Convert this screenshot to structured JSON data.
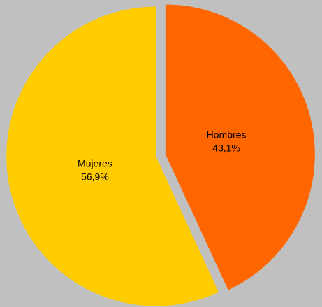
{
  "chart_data": {
    "type": "pie",
    "slices": [
      {
        "label": "Hombres",
        "value": 43.1,
        "value_label": "43,1%",
        "color": "#ff6600"
      },
      {
        "label": "Mujeres",
        "value": 56.9,
        "value_label": "56,9%",
        "color": "#ffcc00"
      }
    ],
    "background": "#c0c0c0",
    "exploded": true,
    "legend": "none"
  }
}
